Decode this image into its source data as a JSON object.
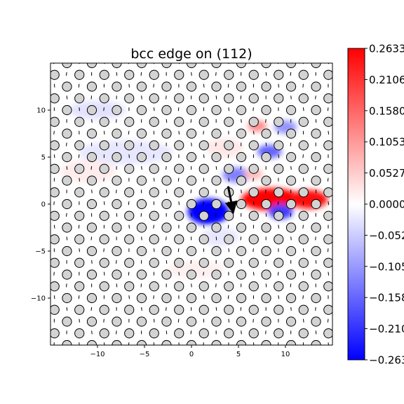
{
  "chart_data": {
    "type": "heatmap",
    "title": "bcc edge on (112)",
    "xlabel": "",
    "ylabel": "",
    "xlim": [
      -15,
      15
    ],
    "ylim": [
      -15,
      15
    ],
    "x_ticks": [
      -10,
      -5,
      0,
      5,
      10
    ],
    "y_ticks": [
      -10,
      -5,
      0,
      5,
      10
    ],
    "grid": false,
    "atoms": {
      "lattice_row_spacing": 1.25,
      "lattice_col_spacing": 2.65,
      "row_offset": 1.325,
      "fill": "#d3d3d3"
    },
    "colorbar": {
      "min": -0.2633,
      "max": 0.2633,
      "ticks": [
        "0.2633",
        "0.2106",
        "0.1580",
        "0.1053",
        "0.0527",
        "0.0000",
        "-0.0527",
        "-0.1053",
        "-0.1580",
        "-0.2106",
        "-0.2633"
      ],
      "colormap": "bwr",
      "low_color": "#0000ff",
      "mid_color": "#ffffff",
      "high_color": "#ff0000"
    },
    "field_blobs": [
      {
        "x": 1.8,
        "y": -0.8,
        "rx": 2.2,
        "ry": 1.4,
        "value": -0.2633
      },
      {
        "x": 8.5,
        "y": 0.5,
        "rx": 3.2,
        "ry": 1.2,
        "value": 0.2633
      },
      {
        "x": 12.5,
        "y": 0.5,
        "rx": 2.0,
        "ry": 1.0,
        "value": 0.25
      },
      {
        "x": 9.5,
        "y": -0.8,
        "rx": 1.3,
        "ry": 0.8,
        "value": -0.2
      },
      {
        "x": 4.8,
        "y": 3.1,
        "rx": 1.5,
        "ry": 0.8,
        "value": -0.13
      },
      {
        "x": 8.3,
        "y": 5.6,
        "rx": 1.3,
        "ry": 0.7,
        "value": -0.16
      },
      {
        "x": 10.0,
        "y": 8.2,
        "rx": 1.2,
        "ry": 0.7,
        "value": -0.11
      },
      {
        "x": 7.0,
        "y": 8.3,
        "rx": 1.0,
        "ry": 0.6,
        "value": 0.12
      },
      {
        "x": 6.6,
        "y": 3.2,
        "rx": 1.0,
        "ry": 0.6,
        "value": 0.07
      },
      {
        "x": -7.0,
        "y": 5.5,
        "rx": 5.0,
        "ry": 1.3,
        "value": -0.025
      },
      {
        "x": -10.0,
        "y": 10.0,
        "rx": 3.0,
        "ry": 1.0,
        "value": -0.03
      },
      {
        "x": -11.0,
        "y": 3.5,
        "rx": 3.0,
        "ry": 1.2,
        "value": 0.02
      },
      {
        "x": 3.5,
        "y": 6.0,
        "rx": 2.0,
        "ry": 1.0,
        "value": 0.025
      },
      {
        "x": 3.0,
        "y": -3.5,
        "rx": 2.0,
        "ry": 1.0,
        "value": -0.025
      },
      {
        "x": 0.5,
        "y": -7.0,
        "rx": 3.0,
        "ry": 1.0,
        "value": 0.015
      }
    ],
    "displacement_arrow": {
      "x": 3.9,
      "y": 1.9,
      "dx": 0.45,
      "dy": -2.3
    }
  }
}
